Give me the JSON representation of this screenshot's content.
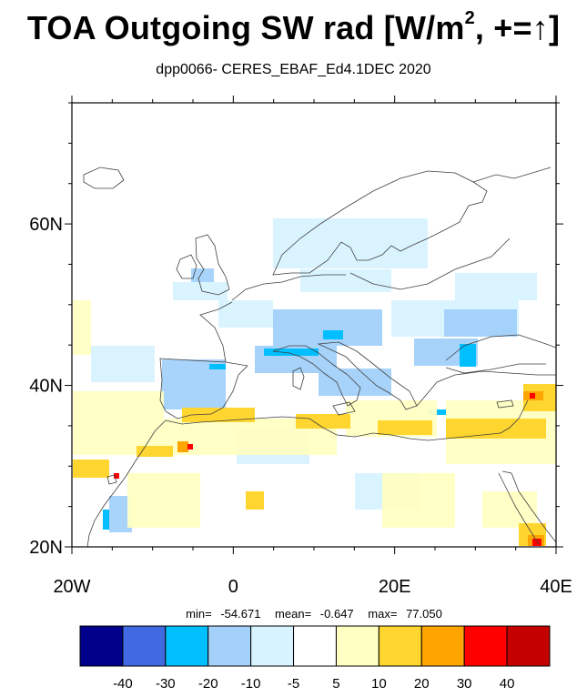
{
  "title": {
    "main": "TOA Outgoing SW rad [W/m",
    "sup": "2",
    "suffix": ", +=",
    "arrow": "↑",
    "close": "]"
  },
  "subtitle": "dpp0066- CERES_EBAF_Ed4.1DEC 2020",
  "stats": {
    "min_label": "min=",
    "min": "-54.671",
    "mean_label": "mean=",
    "mean": "-0.647",
    "max_label": "max=",
    "max": "77.050"
  },
  "axes": {
    "x_ticks": [
      {
        "value": -20,
        "label": "20W"
      },
      {
        "value": 0,
        "label": "0"
      },
      {
        "value": 20,
        "label": "20E"
      },
      {
        "value": 40,
        "label": "40E"
      }
    ],
    "y_ticks": [
      {
        "value": 20,
        "label": "20N"
      },
      {
        "value": 40,
        "label": "40N"
      },
      {
        "value": 60,
        "label": "60N"
      }
    ],
    "lon_range": [
      -20,
      40
    ],
    "lat_range": [
      20,
      75
    ]
  },
  "colorbar": {
    "colors": [
      "#00008b",
      "#4169e1",
      "#00bfff",
      "#a3d1fa",
      "#d6f3ff",
      "#ffffff",
      "#ffffc3",
      "#ffd530",
      "#ffa500",
      "#ff0000",
      "#c40000"
    ],
    "labels": [
      "-40",
      "-30",
      "-20",
      "-10",
      "-5",
      "5",
      "10",
      "20",
      "30",
      "40"
    ]
  }
}
